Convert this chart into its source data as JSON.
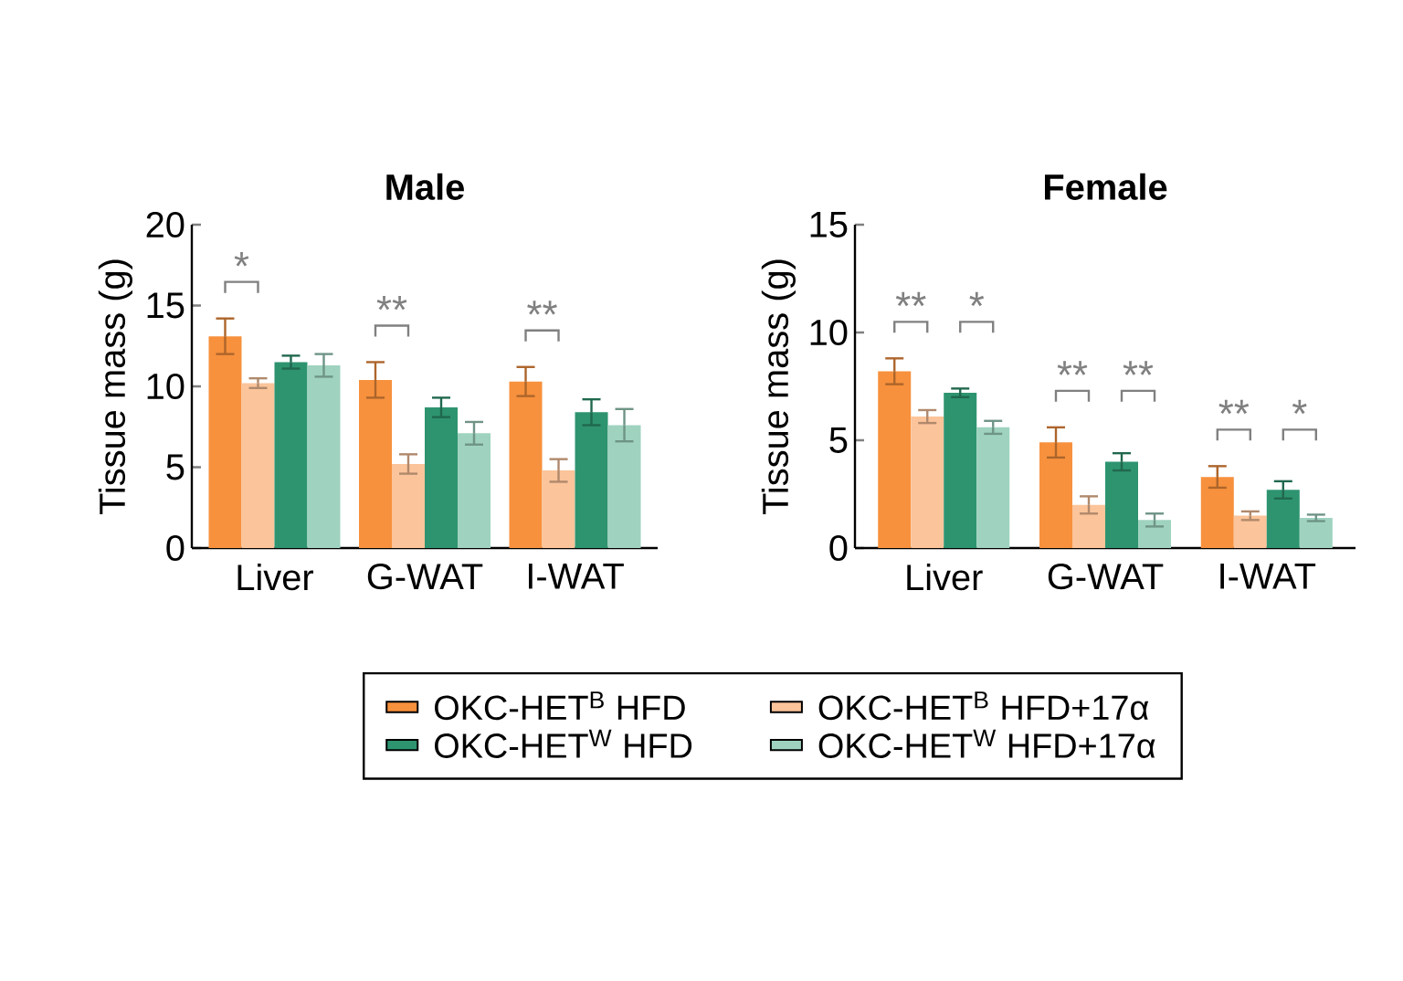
{
  "chart_data": [
    {
      "type": "bar",
      "title": "Male",
      "ylabel": "Tissue mass (g)",
      "categories": [
        "Liver",
        "G-WAT",
        "I-WAT"
      ],
      "ylim": [
        0,
        20
      ],
      "yticks": [
        0,
        5,
        10,
        15,
        20
      ],
      "legend": "bottom",
      "series": [
        {
          "name": "OKC-HET$^{B}$ HFD",
          "color": "#f7913d",
          "values": [
            13.1,
            10.4,
            10.3
          ],
          "errors": [
            1.1,
            1.1,
            0.9
          ]
        },
        {
          "name": "OKC-HET$^{B}$ HFD+17α",
          "color": "#fbc49a",
          "values": [
            10.2,
            5.2,
            4.8
          ],
          "errors": [
            0.3,
            0.6,
            0.7
          ]
        },
        {
          "name": "OKC-HET$^{W}$ HFD",
          "color": "#2e9470",
          "values": [
            11.5,
            8.7,
            8.4
          ],
          "errors": [
            0.4,
            0.6,
            0.8
          ]
        },
        {
          "name": "OKC-HET$^{W}$ HFD+17α",
          "color": "#9fd3bf",
          "values": [
            11.3,
            7.1,
            7.6
          ],
          "errors": [
            0.7,
            0.7,
            1.0
          ]
        }
      ],
      "annotations": [
        "*",
        "**",
        "**"
      ]
    },
    {
      "type": "bar",
      "title": "Female",
      "ylabel": "Tissue mass (g)",
      "categories": [
        "Liver",
        "G-WAT",
        "I-WAT"
      ],
      "ylim": [
        0,
        15
      ],
      "yticks": [
        0,
        5,
        10,
        15
      ],
      "series": [
        {
          "color": "#f7913d",
          "values": [
            8.2,
            4.9,
            3.3
          ],
          "errors": [
            0.6,
            0.7,
            0.5
          ]
        },
        {
          "color": "#fbc49a",
          "values": [
            6.1,
            2.0,
            1.5
          ],
          "errors": [
            0.3,
            0.4,
            0.2
          ]
        },
        {
          "color": "#2e9470",
          "values": [
            7.2,
            4.0,
            2.7
          ],
          "errors": [
            0.2,
            0.4,
            0.4
          ]
        },
        {
          "color": "#9fd3bf",
          "values": [
            5.6,
            1.3,
            1.4
          ],
          "errors": [
            0.3,
            0.3,
            0.15
          ]
        }
      ],
      "annotations": [
        "**",
        "*",
        "**",
        "**",
        "**",
        "*"
      ]
    }
  ]
}
